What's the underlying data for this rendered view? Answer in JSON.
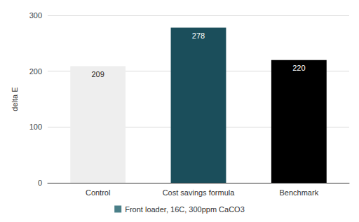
{
  "chart_data": {
    "type": "bar",
    "y_label": "delta E",
    "categories": [
      "Control",
      "Cost savings formula",
      "Benchmark"
    ],
    "series": [
      {
        "name": "Front loader, 16C, 300ppm CaCO3",
        "color": "#4a7f88",
        "colors": [
          "#eeeeee",
          "#1b4e5b",
          "#000000"
        ],
        "values": [
          209,
          278,
          220
        ]
      }
    ],
    "ylim": [
      0,
      300
    ],
    "yticks": [
      0,
      100,
      200,
      300
    ],
    "grid": true,
    "data_labels": true,
    "legend": "bottom"
  }
}
